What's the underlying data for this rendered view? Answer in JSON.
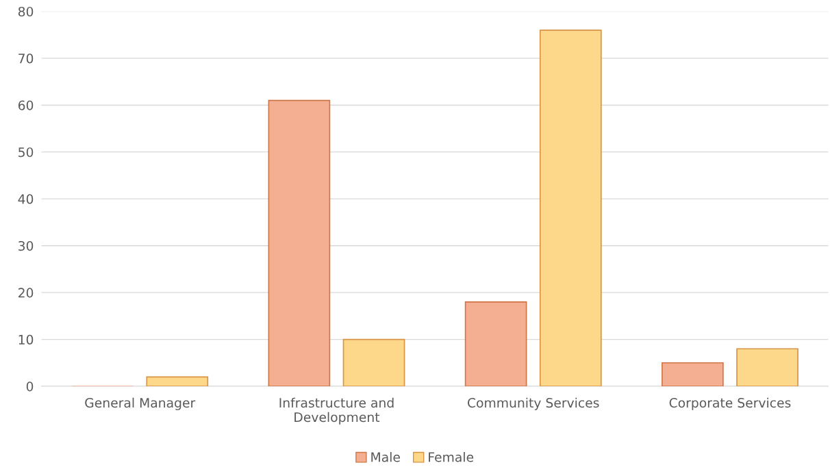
{
  "chart_data": {
    "type": "bar",
    "categories": [
      "General Manager",
      "Infrastructure and Development",
      "Community Services",
      "Corporate Services"
    ],
    "series": [
      {
        "name": "Male",
        "color": "#f4ae92",
        "values": [
          0,
          61,
          18,
          5
        ]
      },
      {
        "name": "Female",
        "color": "#fed88a",
        "values": [
          2,
          10,
          76,
          8
        ]
      }
    ],
    "ylim": [
      0,
      80
    ],
    "yticks": [
      0,
      10,
      20,
      30,
      40,
      50,
      60,
      70,
      80
    ],
    "grid": "y",
    "legend": "bottom"
  }
}
